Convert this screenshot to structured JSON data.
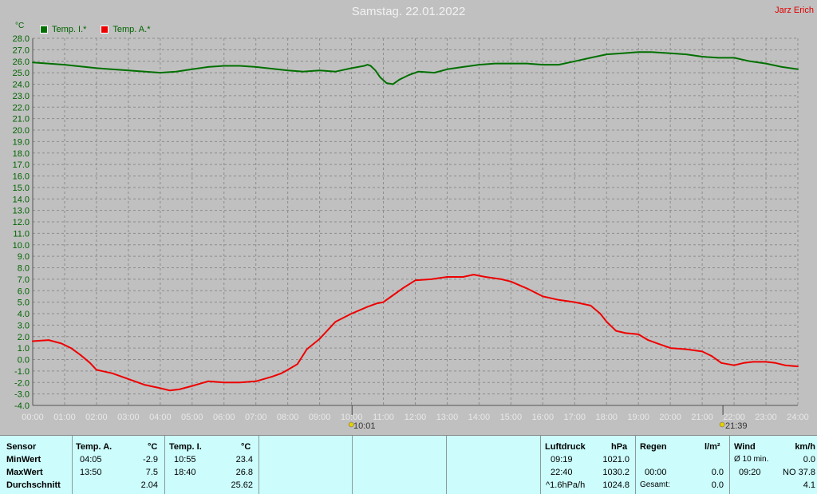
{
  "title": "Samstag. 22.01.2022",
  "author": "Jarz Erich",
  "unit": "°C",
  "legend": [
    {
      "label": "Temp. I.*",
      "color": "#007000"
    },
    {
      "label": "Temp. A.*",
      "color": "#ee0000"
    }
  ],
  "markers": {
    "sunrise": "10:01",
    "sunset": "21:39"
  },
  "chart_data": {
    "type": "line",
    "title": "Samstag. 22.01.2022",
    "ylabel": "°C",
    "ylim": [
      -4.0,
      28.0
    ],
    "y_ticks": [
      "28.0",
      "27.0",
      "26.0",
      "25.0",
      "24.0",
      "23.0",
      "22.0",
      "21.0",
      "20.0",
      "19.0",
      "18.0",
      "17.0",
      "16.0",
      "15.0",
      "14.0",
      "13.0",
      "12.0",
      "11.0",
      "10.0",
      "9.0",
      "8.0",
      "7.0",
      "6.0",
      "5.0",
      "4.0",
      "3.0",
      "2.0",
      "1.0",
      "0.0",
      "-1.0",
      "-2.0",
      "-3.0",
      "-4.0"
    ],
    "x_ticks": [
      "00:00",
      "01:00",
      "02:00",
      "03:00",
      "04:00",
      "05:00",
      "06:00",
      "07:00",
      "08:00",
      "09:00",
      "10:00",
      "11:00",
      "12:00",
      "13:00",
      "14:00",
      "15:00",
      "16:00",
      "17:00",
      "18:00",
      "19:00",
      "20:00",
      "21:00",
      "22:00",
      "23:00",
      "24:00"
    ],
    "xlim": [
      0,
      24
    ],
    "grid": true,
    "legend_position": "top-left",
    "series": [
      {
        "name": "Temp. I.*",
        "color": "#007000",
        "x": [
          0,
          1,
          2,
          3,
          4,
          4.5,
          5,
          5.5,
          6,
          6.5,
          7,
          8,
          8.5,
          9,
          9.5,
          10,
          10.4,
          10.5,
          10.6,
          10.75,
          10.9,
          11.1,
          11.3,
          11.5,
          11.8,
          12.1,
          12.6,
          13,
          13.5,
          14,
          14.5,
          15,
          15.5,
          16,
          16.5,
          17,
          17.5,
          18,
          18.5,
          19,
          19.4,
          20,
          20.5,
          21,
          21.5,
          22,
          22.5,
          23,
          23.5,
          24
        ],
        "y": [
          25.9,
          25.7,
          25.4,
          25.2,
          25.0,
          25.1,
          25.3,
          25.5,
          25.6,
          25.6,
          25.5,
          25.2,
          25.1,
          25.2,
          25.1,
          25.4,
          25.6,
          25.7,
          25.6,
          25.2,
          24.6,
          24.1,
          24.0,
          24.4,
          24.8,
          25.1,
          25.0,
          25.3,
          25.5,
          25.7,
          25.8,
          25.8,
          25.8,
          25.7,
          25.7,
          26.0,
          26.3,
          26.6,
          26.7,
          26.8,
          26.8,
          26.7,
          26.6,
          26.4,
          26.3,
          26.3,
          26.0,
          25.8,
          25.5,
          25.3
        ]
      },
      {
        "name": "Temp. A.*",
        "color": "#ee0000",
        "x": [
          0,
          0.5,
          0.9,
          1.2,
          1.5,
          1.8,
          2.0,
          2.5,
          3.0,
          3.5,
          4.0,
          4.3,
          4.6,
          5.0,
          5.5,
          6.0,
          6.5,
          7.0,
          7.5,
          7.8,
          8.0,
          8.3,
          8.6,
          9.0,
          9.5,
          10.0,
          10.5,
          10.8,
          11.0,
          11.3,
          11.6,
          12.0,
          12.5,
          13.0,
          13.5,
          13.83,
          14.2,
          14.7,
          15.0,
          15.5,
          16.0,
          16.5,
          17.0,
          17.5,
          17.8,
          18.0,
          18.3,
          18.6,
          19.0,
          19.3,
          19.6,
          20.0,
          20.5,
          21.0,
          21.3,
          21.6,
          22.0,
          22.3,
          22.6,
          23.0,
          23.3,
          23.6,
          24.0
        ],
        "y": [
          1.6,
          1.7,
          1.4,
          1.0,
          0.4,
          -0.3,
          -0.9,
          -1.2,
          -1.7,
          -2.2,
          -2.5,
          -2.7,
          -2.6,
          -2.3,
          -1.9,
          -2.0,
          -2.0,
          -1.9,
          -1.5,
          -1.2,
          -0.9,
          -0.4,
          0.9,
          1.8,
          3.3,
          4.0,
          4.6,
          4.9,
          5.0,
          5.6,
          6.2,
          6.9,
          7.0,
          7.2,
          7.2,
          7.4,
          7.2,
          7.0,
          6.8,
          6.2,
          5.5,
          5.2,
          5.0,
          4.7,
          4.0,
          3.3,
          2.5,
          2.3,
          2.2,
          1.7,
          1.4,
          1.0,
          0.9,
          0.7,
          0.3,
          -0.3,
          -0.5,
          -0.3,
          -0.2,
          -0.2,
          -0.3,
          -0.5,
          -0.6
        ]
      }
    ]
  },
  "stats": {
    "sensor": {
      "header": "Sensor",
      "rows": [
        "MinWert",
        "MaxWert",
        "Durchschnitt"
      ]
    },
    "temp_a": {
      "header": "Temp. A.",
      "unit": "°C",
      "min_time": "04:05",
      "min_val": "-2.9",
      "max_time": "13:50",
      "max_val": "7.5",
      "avg": "2.04"
    },
    "temp_i": {
      "header": "Temp. I.",
      "unit": "°C",
      "min_time": "10:55",
      "min_val": "23.4",
      "max_time": "18:40",
      "max_val": "26.8",
      "avg": "25.62"
    },
    "luftdruck": {
      "header": "Luftdruck",
      "unit": "hPa",
      "min_time": "09:19",
      "min_val": "1021.0",
      "max_time": "22:40",
      "max_val": "1030.2",
      "trend": "^1.6hPa/h",
      "avg": "1024.8"
    },
    "regen": {
      "header": "Regen",
      "unit": "l/m²",
      "max_time": "00:00",
      "max_val": "0.0",
      "total_label": "Gesamt:",
      "total": "0.0"
    },
    "wind": {
      "header": "Wind",
      "unit": "km/h",
      "row1_label": "Ø 10 min.",
      "row1_val": "0.0",
      "row2_time": "09:20",
      "row2_val": "NO 37.8",
      "avg": "4.1"
    }
  }
}
